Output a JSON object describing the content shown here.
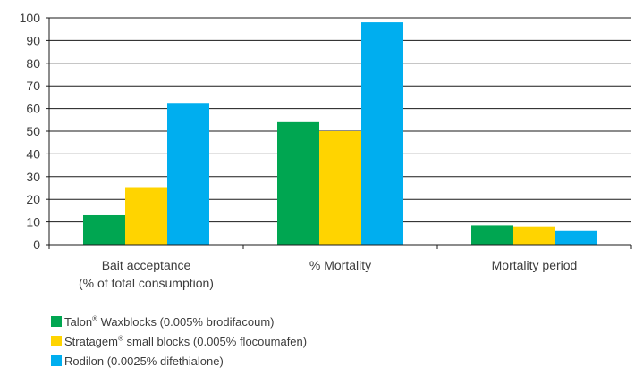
{
  "chart_data": {
    "type": "bar",
    "categories": [
      "Bait acceptance\n(% of total consumption)",
      "% Mortality",
      "Mortality period"
    ],
    "series": [
      {
        "name": "Talon® Waxblocks (0.005% brodifacoum)",
        "name_parts": {
          "brand": "Talon",
          "mark": "®",
          "rest": " Waxblocks (0.005% brodifacoum)"
        },
        "color": "#00a651",
        "values": [
          13,
          54,
          8.5
        ]
      },
      {
        "name": "Stratagem® small blocks (0.005% flocoumafen)",
        "name_parts": {
          "brand": "Stratagem",
          "mark": "®",
          "rest": " small blocks (0.005% flocoumafen)"
        },
        "color": "#ffd400",
        "values": [
          25,
          50,
          8
        ]
      },
      {
        "name": "Rodilon (0.0025% difethialone)",
        "name_parts": {
          "brand": "Rodilon",
          "mark": "",
          "rest": " (0.0025% difethialone)"
        },
        "color": "#00aeef",
        "values": [
          62.5,
          98,
          6
        ]
      }
    ],
    "title": "",
    "xlabel": "",
    "ylabel": "",
    "ylim": [
      0,
      100
    ],
    "yticks": [
      0,
      10,
      20,
      30,
      40,
      50,
      60,
      70,
      80,
      90,
      100
    ],
    "grid": true,
    "legend_position": "bottom-left"
  }
}
